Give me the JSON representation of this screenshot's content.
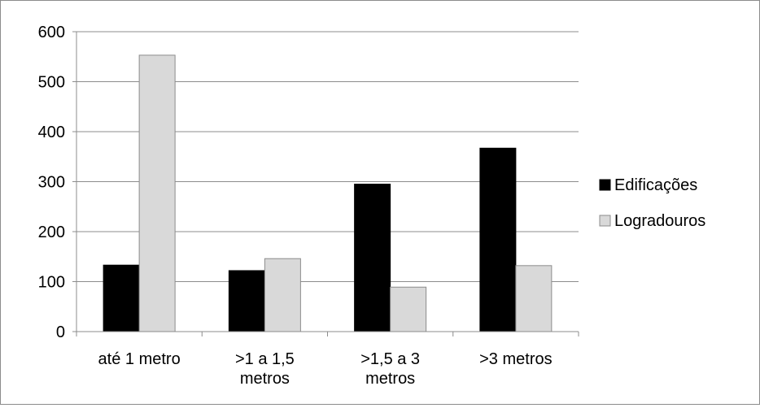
{
  "chart_data": {
    "type": "bar",
    "categories": [
      [
        "até 1 metro"
      ],
      [
        ">1 a 1,5",
        "metros"
      ],
      [
        ">1,5 a 3",
        "metros"
      ],
      [
        ">3 metros"
      ]
    ],
    "series": [
      {
        "name": "Edificações",
        "color": "#000000",
        "values": [
          133,
          122,
          295,
          367
        ]
      },
      {
        "name": "Logradouros",
        "color": "#d9d9d9",
        "values": [
          553,
          146,
          89,
          132
        ]
      }
    ],
    "ylim": [
      0,
      600
    ],
    "yticks": [
      0,
      100,
      200,
      300,
      400,
      500,
      600
    ],
    "grid": true,
    "legend_position": "right"
  }
}
